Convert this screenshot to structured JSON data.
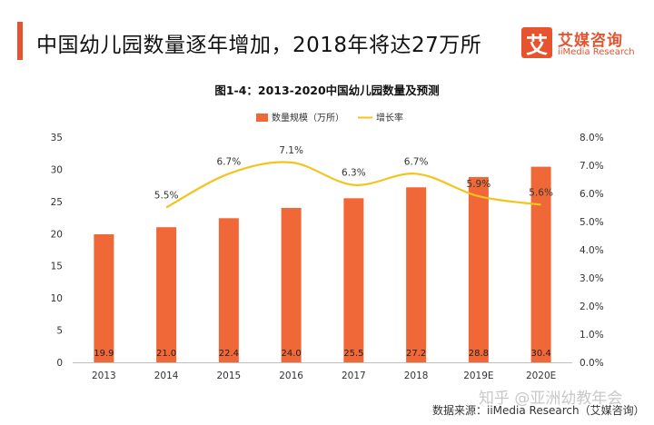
{
  "header": {
    "title": "中国幼儿园数量逐年增加，2018年将达27万所"
  },
  "logo": {
    "mark": "艾",
    "name_cn": "艾媒咨询",
    "name_en": "iiMedia Research"
  },
  "chart_data": {
    "type": "bar+line",
    "title": "图1-4：2013-2020中国幼儿园数量及预测",
    "categories": [
      "2013",
      "2014",
      "2015",
      "2016",
      "2017",
      "2018",
      "2019E",
      "2020E"
    ],
    "series": [
      {
        "name": "数量规模（万所）",
        "type": "bar",
        "axis": "left",
        "color": "#f06838",
        "values": [
          19.9,
          21.0,
          22.4,
          24.0,
          25.5,
          27.2,
          28.8,
          30.4
        ],
        "labels": [
          "19.9",
          "21.0",
          "22.4",
          "24.0",
          "25.5",
          "27.2",
          "28.8",
          "30.4"
        ]
      },
      {
        "name": "增长率",
        "type": "line",
        "axis": "right",
        "color": "#f2c41c",
        "values": [
          null,
          5.5,
          6.7,
          7.1,
          6.3,
          6.7,
          5.9,
          5.6
        ],
        "labels": [
          "",
          "5.5%",
          "6.7%",
          "7.1%",
          "6.3%",
          "6.7%",
          "5.9%",
          "5.6%"
        ]
      }
    ],
    "y_left": {
      "min": 0,
      "max": 35,
      "ticks": [
        "0",
        "5",
        "10",
        "15",
        "20",
        "25",
        "30",
        "35"
      ]
    },
    "y_right": {
      "min": 0,
      "max": 8,
      "ticks": [
        "0.0%",
        "1.0%",
        "2.0%",
        "3.0%",
        "4.0%",
        "5.0%",
        "6.0%",
        "7.0%",
        "8.0%"
      ]
    },
    "legend_position": "top-center",
    "grid": false
  },
  "watermark": "知乎 @亚洲幼教年会",
  "source": "数据来源：iiMedia Research（艾媒咨询）"
}
